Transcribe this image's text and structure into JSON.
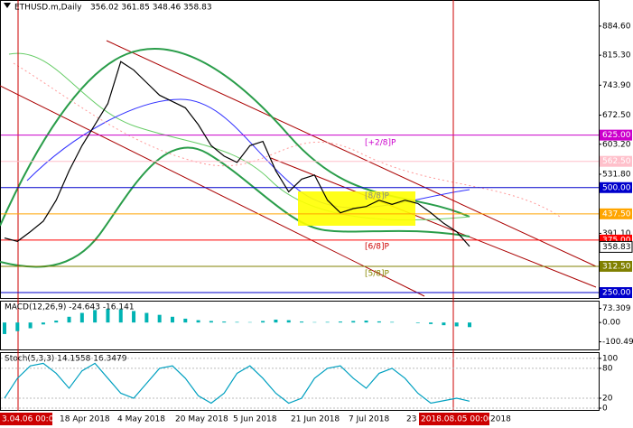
{
  "header": {
    "symbol": "ETHUSD.m,Daily",
    "ohlc": "356.02 361.85 348.46 358.83"
  },
  "chart_data": [
    {
      "type": "line",
      "ylim": [
        235,
        944.6
      ],
      "yticks": [
        {
          "value": 884.6,
          "label": "884.60"
        },
        {
          "value": 815.3,
          "label": "815.30"
        },
        {
          "value": 743.9,
          "label": "743.90"
        },
        {
          "value": 672.5,
          "label": "672.50"
        },
        {
          "value": 603.2,
          "label": "603.20"
        },
        {
          "value": 531.8,
          "label": "531.80"
        },
        {
          "value": 391.1,
          "label": "391.10"
        }
      ],
      "levels": [
        {
          "value": 625,
          "label": "625.00",
          "color": "#cc00cc",
          "text_color": "#ffffff"
        },
        {
          "value": 562.5,
          "label": "562.50",
          "color": "#ffc0cb",
          "text_color": "#ffffff"
        },
        {
          "value": 500,
          "label": "500.00",
          "color": "#0000cc",
          "text_color": "#ffffff"
        },
        {
          "value": 437.5,
          "label": "437.50",
          "color": "#ffa500",
          "text_color": "#ffffff"
        },
        {
          "value": 375,
          "label": "375.00",
          "color": "#ff0000",
          "text_color": "#ffffff"
        },
        {
          "value": 312.5,
          "label": "312.50",
          "color": "#808000",
          "text_color": "#ffffff"
        },
        {
          "value": 250,
          "label": "250.00",
          "color": "#0000cc",
          "text_color": "#ffffff"
        }
      ],
      "level_tags": [
        "[+2/8]P",
        "[8/8]P",
        "[6/8]P",
        "[5/8]P"
      ],
      "current": {
        "value": 358.83,
        "label": "358.83"
      },
      "values": [
        380,
        372,
        395,
        420,
        470,
        540,
        600,
        650,
        700,
        800,
        780,
        750,
        720,
        705,
        690,
        650,
        600,
        575,
        560,
        600,
        610,
        540,
        490,
        520,
        530,
        470,
        440,
        450,
        455,
        470,
        460,
        470,
        462,
        440,
        415,
        395,
        360
      ],
      "color": "#000000",
      "x_labels": [
        "3.04.06 00:00",
        "18 Apr 2018",
        "4 May 2018",
        "20 May 2018",
        "5 Jun 2018",
        "21 Jun 2018",
        "7 Jul 2018",
        "23",
        "2018.08.05 00:00",
        "2018"
      ]
    },
    {
      "type": "bar",
      "title": "MACD(12,26,9) -24.643 -16.141",
      "ylim": [
        -145,
        109
      ],
      "yticks": [
        {
          "value": 73.309,
          "label": "73.309"
        },
        {
          "value": 0,
          "label": "0.00"
        },
        {
          "value": -100.492,
          "label": "-100.492"
        }
      ],
      "values": [
        -60,
        -45,
        -30,
        -10,
        10,
        30,
        50,
        65,
        70,
        68,
        60,
        50,
        40,
        30,
        20,
        12,
        8,
        5,
        3,
        2,
        8,
        15,
        12,
        5,
        2,
        3,
        5,
        8,
        10,
        6,
        3,
        0,
        -3,
        -8,
        -14,
        -20,
        -24
      ],
      "color": "#00b3b3"
    },
    {
      "type": "line",
      "title": "Stoch(5,3,3) 14.1558 16.3479",
      "ylim": [
        -5.4,
        110.7
      ],
      "yticks": [
        100,
        80,
        20,
        0
      ],
      "values": [
        20,
        60,
        85,
        90,
        70,
        40,
        75,
        90,
        60,
        30,
        20,
        50,
        80,
        85,
        60,
        25,
        10,
        30,
        70,
        85,
        60,
        30,
        10,
        20,
        60,
        80,
        85,
        60,
        40,
        70,
        80,
        60,
        30,
        10,
        15,
        20,
        14
      ],
      "color": "#00a0c0"
    }
  ]
}
